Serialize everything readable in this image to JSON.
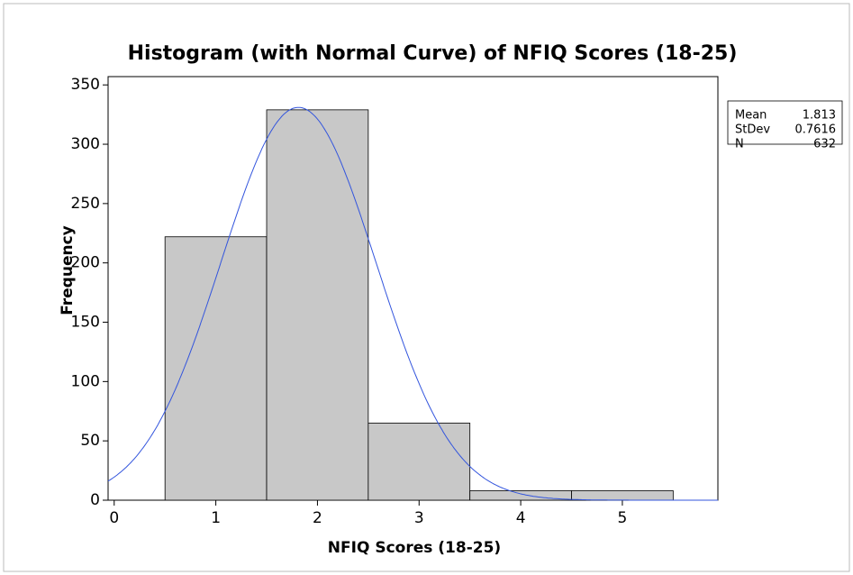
{
  "chart_data": {
    "type": "histogram",
    "title": "Histogram (with Normal Curve) of NFIQ Scores (18-25)",
    "x_label": "NFIQ Scores (18-25)",
    "y_label": "Frequency",
    "bins": [
      0.5,
      1.5,
      2.5,
      3.5,
      4.5,
      5.5
    ],
    "counts": [
      222,
      329,
      65,
      8,
      8
    ],
    "color": "#c8c8c8",
    "curve_color": "#3355dd",
    "xlim": [
      -0.06,
      5.94
    ],
    "ylim": [
      0,
      357
    ],
    "xticks": [
      0,
      1,
      2,
      3,
      4,
      5
    ],
    "yticks": [
      0,
      50,
      100,
      150,
      200,
      250,
      300,
      350
    ],
    "stats": [
      {
        "label": "Mean",
        "value": 1.813
      },
      {
        "label": "StDev",
        "value": 0.7616
      },
      {
        "label": "N",
        "value": 632
      }
    ]
  }
}
